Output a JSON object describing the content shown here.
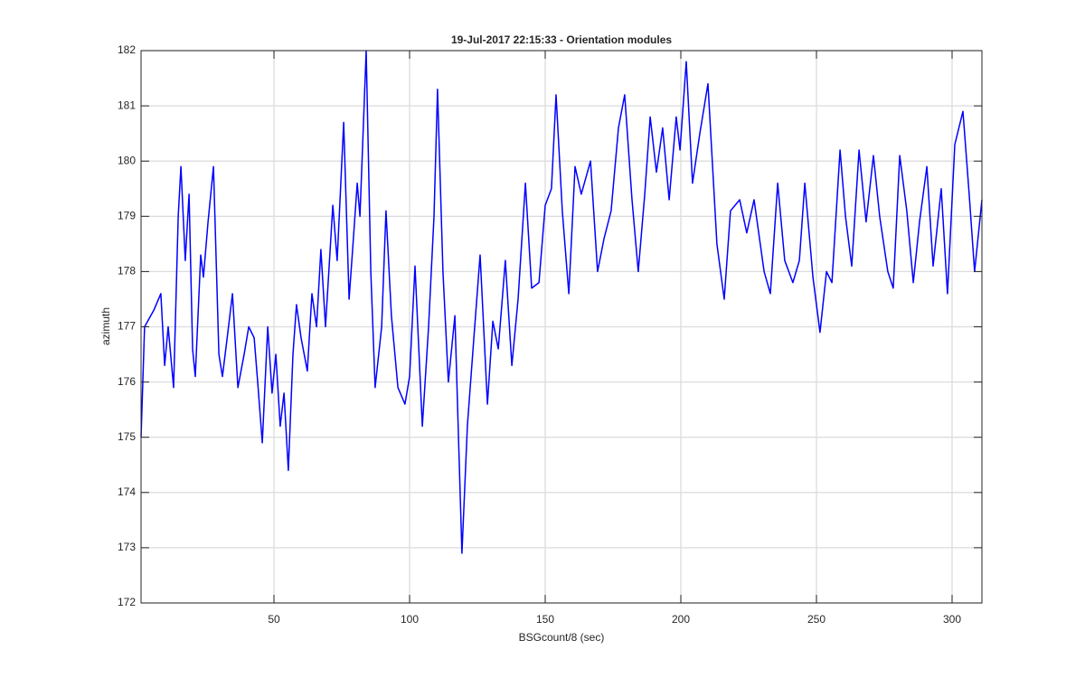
{
  "chart_data": {
    "type": "line",
    "title": "19-Jul-2017 22:15:33 - Orientation modules",
    "x_label": "BSGcount/8 (sec)",
    "y_label": "azimuth",
    "xlim": [
      1,
      311
    ],
    "ylim": [
      172,
      182
    ],
    "xticks": [
      50,
      100,
      150,
      200,
      250,
      300
    ],
    "yticks": [
      172,
      173,
      174,
      175,
      176,
      177,
      178,
      179,
      180,
      181,
      182
    ],
    "grid": true,
    "x": [
      1,
      2.3,
      5.7,
      8.3,
      9.7,
      11,
      13,
      14.7,
      15.7,
      17.3,
      18.7,
      20,
      21,
      23,
      24,
      25.7,
      27.7,
      29.7,
      31,
      33,
      34.7,
      36.7,
      39,
      40.7,
      42.7,
      44,
      45.7,
      47.7,
      49.3,
      50.7,
      52.3,
      53.7,
      55.3,
      57,
      58.3,
      60,
      62.3,
      64,
      65.7,
      67.3,
      69,
      71.7,
      73.3,
      75.7,
      77.7,
      79,
      80.7,
      81.7,
      84,
      85.7,
      87.3,
      89.7,
      91.3,
      93.3,
      95.7,
      98.3,
      100,
      102,
      104.7,
      107,
      109,
      110.3,
      112.3,
      114.3,
      116.7,
      119.3,
      121.3,
      123.7,
      126,
      128.7,
      130.7,
      132.7,
      135.3,
      137.7,
      140,
      142.7,
      145,
      147.7,
      150,
      152.3,
      154,
      156.3,
      158.7,
      161,
      163.3,
      166.7,
      169.3,
      171.7,
      174.3,
      177,
      179.3,
      182,
      184.3,
      186.7,
      188.7,
      191,
      193.3,
      195.7,
      198.3,
      199.7,
      202,
      204.3,
      207,
      210,
      213.3,
      216,
      218.3,
      221.7,
      224.3,
      227,
      230.7,
      233,
      235.7,
      238.3,
      241.3,
      243.7,
      245.7,
      248.7,
      251.3,
      253.7,
      255.7,
      258.7,
      260.7,
      263,
      265.7,
      268.3,
      271,
      273.3,
      276.3,
      278.3,
      280.7,
      283.3,
      285.7,
      288,
      290.7,
      293,
      296,
      298.3,
      301,
      304,
      306.3,
      308.3,
      311
    ],
    "series": [
      {
        "color": "#0000ff",
        "values": [
          175,
          177,
          177.3,
          177.6,
          176.3,
          177.0,
          175.9,
          179.0,
          179.9,
          178.2,
          179.4,
          176.6,
          176.1,
          178.3,
          177.9,
          178.9,
          179.9,
          176.5,
          176.1,
          176.9,
          177.6,
          175.9,
          176.5,
          177.0,
          176.8,
          176.0,
          174.9,
          177.0,
          175.8,
          176.5,
          175.2,
          175.8,
          174.4,
          176.5,
          177.4,
          176.8,
          176.2,
          177.6,
          177.0,
          178.4,
          177.0,
          179.2,
          178.2,
          180.7,
          177.5,
          178.4,
          179.6,
          179.0,
          182.0,
          178.0,
          175.9,
          177.0,
          179.1,
          177.2,
          175.9,
          175.6,
          176.1,
          178.1,
          175.2,
          177.0,
          179.0,
          181.3,
          178.0,
          176.0,
          177.2,
          172.9,
          175.2,
          176.8,
          178.3,
          175.6,
          177.1,
          176.6,
          178.2,
          176.3,
          177.5,
          179.6,
          177.7,
          177.8,
          179.2,
          179.5,
          181.2,
          179.1,
          177.6,
          179.9,
          179.4,
          180.0,
          178.0,
          178.6,
          179.1,
          180.6,
          181.2,
          179.3,
          178.0,
          179.4,
          180.8,
          179.8,
          180.6,
          179.3,
          180.8,
          180.2,
          181.8,
          179.6,
          180.5,
          181.4,
          178.5,
          177.5,
          179.1,
          179.3,
          178.7,
          179.3,
          178.0,
          177.6,
          179.6,
          178.2,
          177.8,
          178.2,
          179.6,
          177.9,
          176.9,
          178.0,
          177.8,
          180.2,
          179.0,
          178.1,
          180.2,
          178.9,
          180.1,
          179.0,
          178.0,
          177.7,
          180.1,
          179.1,
          177.8,
          178.9,
          179.9,
          178.1,
          179.5,
          177.6,
          180.3,
          180.9,
          179.4,
          178.0,
          179.3
        ]
      }
    ]
  }
}
